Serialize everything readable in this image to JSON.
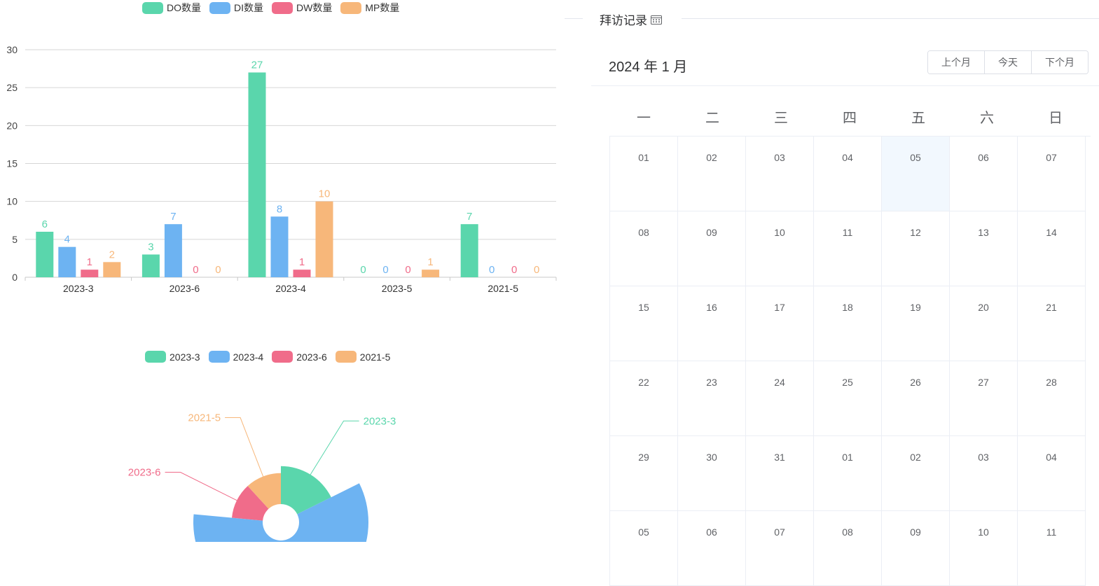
{
  "chart_data": [
    {
      "type": "bar",
      "categories": [
        "2023-3",
        "2023-6",
        "2023-4",
        "2023-5",
        "2021-5"
      ],
      "series": [
        {
          "name": "DO数量",
          "values": [
            6,
            3,
            27,
            0,
            7
          ],
          "color": "#5ad6ac"
        },
        {
          "name": "DI数量",
          "values": [
            4,
            7,
            8,
            0,
            0
          ],
          "color": "#6db3f2"
        },
        {
          "name": "DW数量",
          "values": [
            1,
            0,
            1,
            0,
            0
          ],
          "color": "#f06c8a"
        },
        {
          "name": "MP数量",
          "values": [
            2,
            0,
            10,
            1,
            0
          ],
          "color": "#f7b77a"
        }
      ],
      "yticks": [
        "0",
        "5",
        "10",
        "15",
        "20",
        "25",
        "30"
      ],
      "ylim": [
        0,
        30
      ],
      "legend": "top",
      "grid": true
    },
    {
      "type": "pie",
      "variant": "nightingale-rose",
      "legend": "top",
      "slices": [
        {
          "name": "2023-3",
          "value": 3,
          "color": "#5ad6ac"
        },
        {
          "name": "2023-4",
          "value": 10,
          "color": "#6db3f2"
        },
        {
          "name": "2023-6",
          "value": 2,
          "color": "#f06c8a"
        },
        {
          "name": "2021-5",
          "value": 2,
          "color": "#f7b77a"
        }
      ]
    }
  ],
  "calendar": {
    "section_title": "拜访记录",
    "month_label": "2024 年 1 月",
    "buttons": [
      "上个月",
      "今天",
      "下个月"
    ],
    "weekdays": [
      "一",
      "二",
      "三",
      "四",
      "五",
      "六",
      "日"
    ],
    "days": [
      "01",
      "02",
      "03",
      "04",
      "05",
      "06",
      "07",
      "08",
      "09",
      "10",
      "11",
      "12",
      "13",
      "14",
      "15",
      "16",
      "17",
      "18",
      "19",
      "20",
      "21",
      "22",
      "23",
      "24",
      "25",
      "26",
      "27",
      "28",
      "29",
      "30",
      "31",
      "01",
      "02",
      "03",
      "04",
      "05",
      "06",
      "07",
      "08",
      "09",
      "10",
      "11"
    ],
    "today_index": 4,
    "accent": "#f2f8fe"
  }
}
